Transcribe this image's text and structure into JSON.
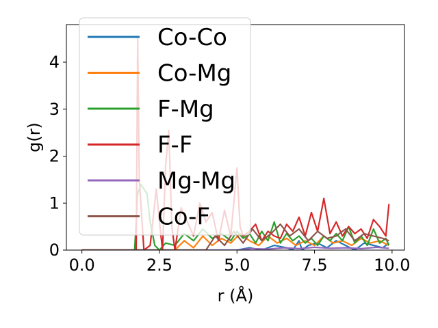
{
  "chart_data": {
    "type": "line",
    "xlabel": "r (Å)",
    "ylabel": "g(r)",
    "xlim": [
      -0.5,
      10.4
    ],
    "ylim": [
      0,
      4.8
    ],
    "xticks": [
      "0.0",
      "2.5",
      "5.0",
      "7.5",
      "10.0"
    ],
    "xtick_values": [
      0,
      2.5,
      5,
      7.5,
      10
    ],
    "yticks": [
      "0",
      "1",
      "2",
      "3",
      "4"
    ],
    "ytick_values": [
      0,
      1,
      2,
      3,
      4
    ],
    "grid": false,
    "legend_position": "top-left",
    "colors": {
      "Co-Co": "#1f77b4",
      "Co-Mg": "#ff7f0e",
      "F-Mg": "#2ca02c",
      "F-F": "#d62728",
      "Mg-Mg": "#9467bd",
      "Co-F": "#8c564b"
    },
    "series": [
      {
        "name": "Co-Co",
        "x": [
          0.0,
          5.0,
          5.4,
          5.8,
          6.2,
          6.6,
          6.8,
          7.0,
          7.1,
          7.3,
          7.6,
          7.9,
          8.2,
          8.5,
          8.8,
          9.1,
          9.4,
          9.7,
          9.9
        ],
        "y": [
          0.0,
          0.0,
          0.05,
          0.0,
          0.1,
          0.05,
          0.0,
          0.2,
          0.0,
          0.1,
          0.15,
          0.05,
          0.2,
          0.1,
          0.0,
          0.15,
          0.1,
          0.05,
          0.15
        ]
      },
      {
        "name": "Co-Mg",
        "x": [
          0.0,
          3.0,
          3.3,
          3.6,
          3.9,
          4.2,
          4.5,
          4.8,
          5.1,
          5.4,
          5.7,
          6.0,
          6.3,
          6.6,
          6.9,
          7.2,
          7.5,
          7.8,
          8.1,
          8.4,
          8.7,
          9.0,
          9.3,
          9.6,
          9.9
        ],
        "y": [
          0.0,
          0.0,
          0.2,
          0.05,
          0.3,
          0.1,
          0.25,
          0.15,
          0.35,
          0.2,
          0.1,
          0.3,
          0.15,
          0.25,
          0.1,
          0.2,
          0.1,
          0.3,
          0.15,
          0.2,
          0.1,
          0.25,
          0.15,
          0.2,
          0.1
        ]
      },
      {
        "name": "F-Mg",
        "x": [
          0.0,
          1.7,
          1.8,
          1.9,
          2.0,
          2.1,
          2.2,
          2.35,
          2.5,
          2.7,
          3.0,
          3.3,
          3.6,
          3.9,
          4.2,
          4.5,
          4.8,
          5.0,
          5.2,
          5.4,
          5.6,
          5.8,
          6.0,
          6.2,
          6.4,
          6.6,
          6.8,
          7.0,
          7.2,
          7.4,
          7.6,
          7.8,
          8.0,
          8.2,
          8.4,
          8.6,
          8.8,
          9.0,
          9.2,
          9.4,
          9.6,
          9.8,
          9.9
        ],
        "y": [
          0.0,
          0.0,
          1.2,
          1.4,
          1.3,
          1.2,
          0.6,
          0.1,
          0.0,
          0.15,
          0.1,
          0.35,
          0.2,
          0.45,
          0.25,
          0.35,
          0.2,
          0.4,
          0.25,
          0.35,
          0.15,
          0.4,
          0.2,
          0.6,
          0.15,
          0.35,
          0.2,
          0.3,
          0.15,
          0.25,
          0.1,
          0.3,
          0.2,
          0.35,
          0.2,
          0.5,
          0.15,
          0.3,
          0.1,
          0.45,
          0.15,
          0.25,
          0.1
        ]
      },
      {
        "name": "F-F",
        "x": [
          0.0,
          1.75,
          1.8,
          1.85,
          2.0,
          2.2,
          2.4,
          2.5,
          2.6,
          2.7,
          2.8,
          2.9,
          3.0,
          3.2,
          3.4,
          3.6,
          3.8,
          4.0,
          4.2,
          4.4,
          4.6,
          4.8,
          5.0,
          5.1,
          5.2,
          5.4,
          5.6,
          5.8,
          6.0,
          6.2,
          6.4,
          6.6,
          6.8,
          7.0,
          7.2,
          7.4,
          7.6,
          7.8,
          8.0,
          8.2,
          8.4,
          8.6,
          8.8,
          9.0,
          9.2,
          9.4,
          9.6,
          9.8,
          9.9
        ],
        "y": [
          0.0,
          0.0,
          4.5,
          1.5,
          0.0,
          0.1,
          1.3,
          0.6,
          0.0,
          1.8,
          2.55,
          0.5,
          0.0,
          0.9,
          0.6,
          0.3,
          1.0,
          0.6,
          0.8,
          0.2,
          0.85,
          0.3,
          1.75,
          0.5,
          0.3,
          0.4,
          0.55,
          0.2,
          0.4,
          0.3,
          0.25,
          0.55,
          0.4,
          0.7,
          0.3,
          0.8,
          0.4,
          1.1,
          0.35,
          0.6,
          0.3,
          0.5,
          0.35,
          0.45,
          0.25,
          0.65,
          0.5,
          0.3,
          0.98
        ]
      },
      {
        "name": "Mg-Mg",
        "x": [
          0.0,
          5.0,
          5.5,
          6.0,
          6.5,
          7.0,
          7.5,
          8.0,
          8.5,
          9.0,
          9.5,
          9.9
        ],
        "y": [
          0.0,
          0.0,
          0.03,
          0.02,
          0.05,
          0.03,
          0.06,
          0.04,
          0.05,
          0.03,
          0.06,
          0.04
        ]
      },
      {
        "name": "Co-F",
        "x": [
          0.0,
          4.0,
          4.3,
          4.6,
          4.9,
          5.2,
          5.5,
          5.8,
          6.1,
          6.4,
          6.7,
          7.0,
          7.3,
          7.6,
          7.9,
          8.2,
          8.5,
          8.8,
          9.1,
          9.4,
          9.7,
          9.9
        ],
        "y": [
          0.0,
          0.0,
          0.3,
          0.1,
          0.4,
          0.15,
          0.45,
          0.2,
          0.35,
          0.55,
          0.3,
          0.45,
          0.2,
          0.4,
          0.25,
          0.3,
          0.45,
          0.2,
          0.35,
          0.3,
          0.25,
          0.2
        ]
      }
    ]
  }
}
